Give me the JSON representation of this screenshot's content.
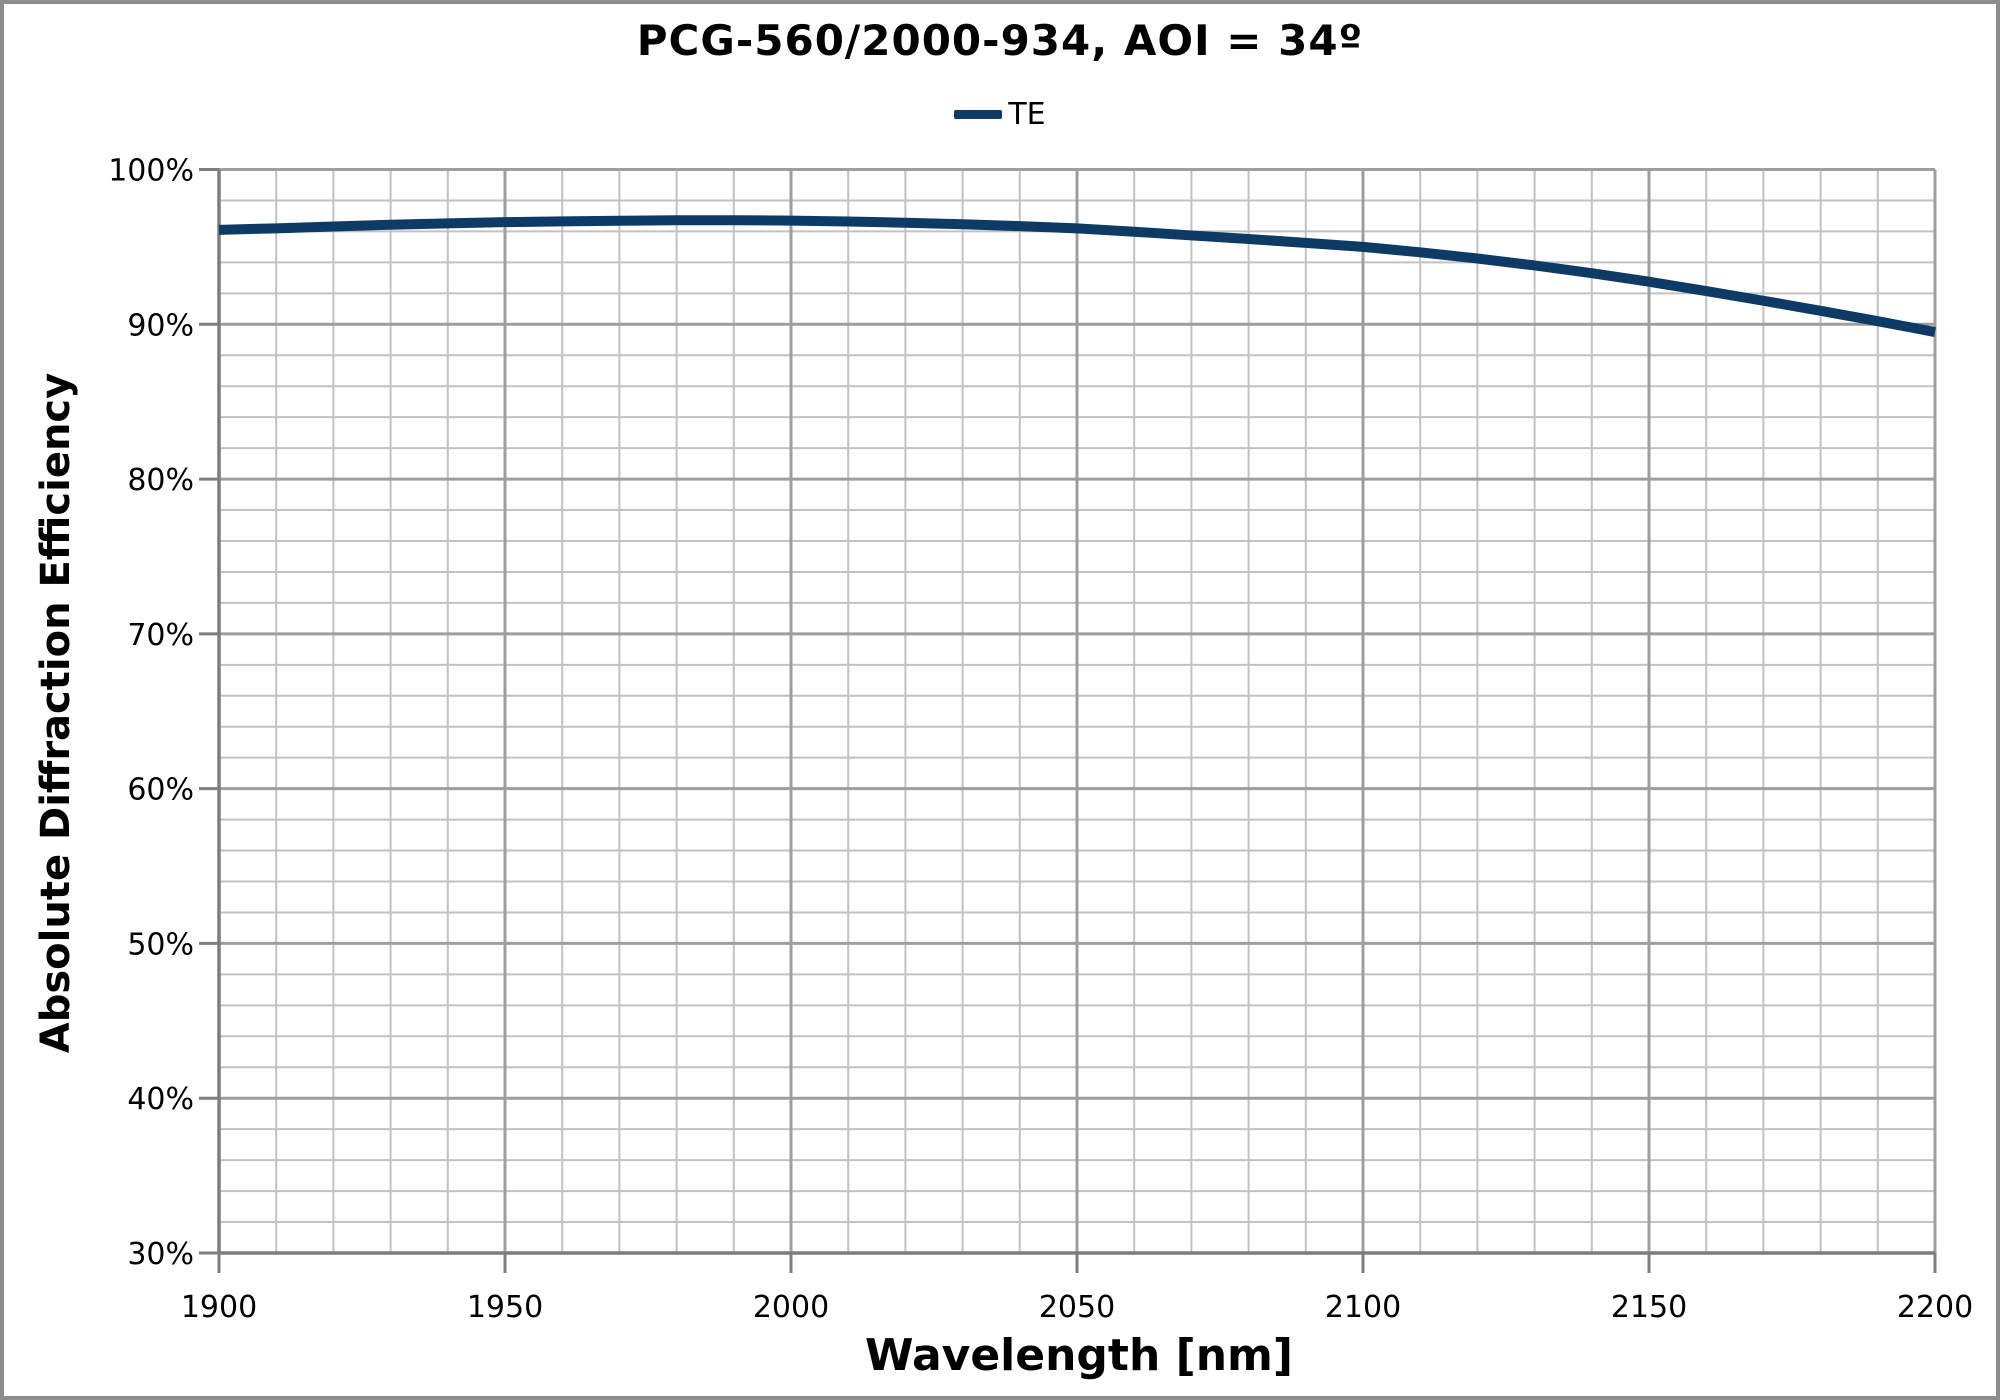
{
  "chart_data": {
    "type": "line",
    "title": "PCG-560/2000-934, AOI = 34º",
    "xlabel": "Wavelength [nm]",
    "ylabel": "Absolute Diffraction Efficiency",
    "xlim": [
      1900,
      2200
    ],
    "ylim_percent": [
      30,
      100
    ],
    "x_major_ticks": [
      1900,
      1950,
      2000,
      2050,
      2100,
      2150,
      2200
    ],
    "x_minor_step": 10,
    "y_major_ticks_percent": [
      30,
      40,
      50,
      60,
      70,
      80,
      90,
      100
    ],
    "y_minor_step_percent": 2,
    "y_tick_suffix": "%",
    "grid": "on",
    "legend_position": "top-center",
    "style": {
      "line_color": "#0e3a66",
      "minor_grid_color": "#c2c2c2",
      "major_grid_color": "#9e9e9e",
      "axis_color": "#7d7d7d",
      "frame_color": "#8c8c8c"
    },
    "series": [
      {
        "name": "TE",
        "color": "#0e3a66",
        "x": [
          1900,
          1910,
          1920,
          1930,
          1940,
          1950,
          1960,
          1970,
          1980,
          1990,
          2000,
          2010,
          2020,
          2030,
          2040,
          2050,
          2060,
          2070,
          2080,
          2090,
          2100,
          2110,
          2120,
          2130,
          2140,
          2150,
          2160,
          2170,
          2180,
          2190,
          2200
        ],
        "y_percent": [
          96.1,
          96.2,
          96.32,
          96.43,
          96.52,
          96.6,
          96.65,
          96.69,
          96.72,
          96.72,
          96.7,
          96.64,
          96.56,
          96.46,
          96.34,
          96.2,
          95.98,
          95.74,
          95.51,
          95.26,
          95.0,
          94.65,
          94.25,
          93.8,
          93.3,
          92.75,
          92.15,
          91.52,
          90.87,
          90.2,
          89.5
        ]
      }
    ]
  }
}
